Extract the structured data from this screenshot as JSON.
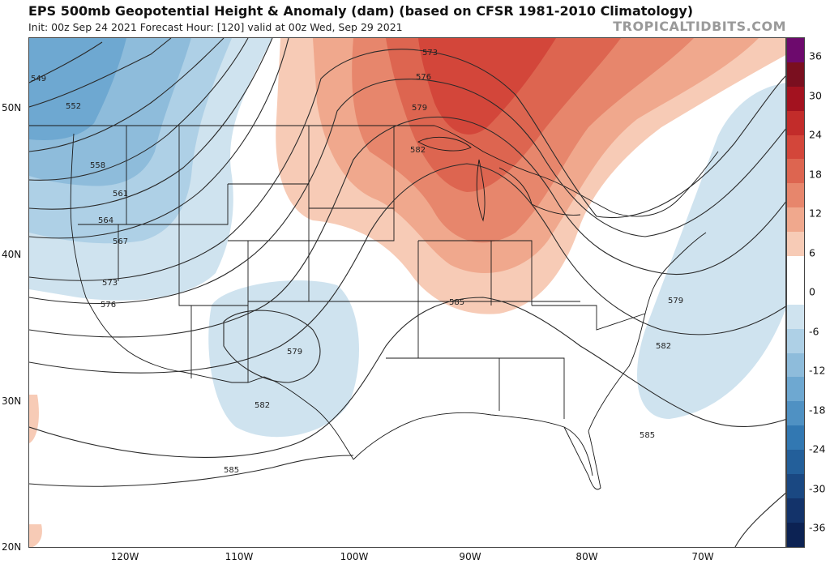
{
  "header": {
    "title": "EPS 500mb Geopotential Height & Anomaly (dam) (based on CFSR 1981-2010 Climatology)",
    "subtitle": "Init: 00z Sep 24 2021   Forecast Hour: [120]   valid at 00z Wed, Sep 29 2021",
    "brand": "TROPICALTIDBITS.COM"
  },
  "map": {
    "lat_labels": [
      "50N",
      "40N",
      "30N",
      "20N"
    ],
    "lon_labels": [
      "120W",
      "110W",
      "100W",
      "90W",
      "80W",
      "70W"
    ],
    "contour_labels": [
      "549",
      "552",
      "558",
      "561",
      "564",
      "567",
      "573",
      "576",
      "573",
      "576",
      "579",
      "582",
      "585",
      "579",
      "582",
      "579",
      "582",
      "585",
      "585"
    ]
  },
  "colorbar": {
    "ticks": [
      "36",
      "30",
      "24",
      "18",
      "12",
      "6",
      "0",
      "-6",
      "-12",
      "-18",
      "-24",
      "-30",
      "-36"
    ],
    "colors": [
      "#6d0a6d",
      "#7a0f1f",
      "#a3121f",
      "#c22c2a",
      "#d3463a",
      "#dd6550",
      "#e7866c",
      "#f0a88d",
      "#f7cbb6",
      "#ffffff",
      "#ffffff",
      "#cfe3ef",
      "#aed0e6",
      "#8ebcdb",
      "#6ea8d1",
      "#4f91c3",
      "#3278b2",
      "#235f9a",
      "#1a4882",
      "#13336a",
      "#0c2253"
    ]
  }
}
